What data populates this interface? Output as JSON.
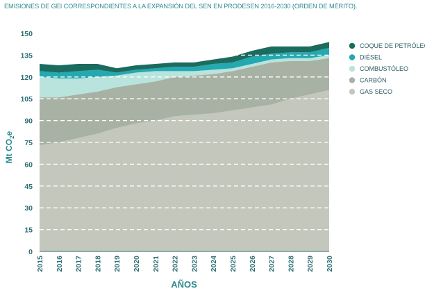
{
  "chart_data": {
    "type": "area",
    "stacked": true,
    "title": "EMISIONES DE GEI CORRESPONDIENTES A LA EXPANSIÓN DEL SEN EN PRODESEN 2016-2030 (ORDEN DE MÉRITO).",
    "xlabel": "AÑOS",
    "ylabel": "Mt CO2e",
    "ylabel_main": "Mt CO",
    "ylabel_sub": "2",
    "ylabel_suffix": "e",
    "x": [
      "2015",
      "2016",
      "2017",
      "2018",
      "2019",
      "2020",
      "2021",
      "2022",
      "2023",
      "2024",
      "2025",
      "2026",
      "2027",
      "2028",
      "2029",
      "2030"
    ],
    "ylim": [
      0,
      150
    ],
    "yticks": [
      "0",
      "15",
      "30",
      "45",
      "60",
      "75",
      "90",
      "105",
      "120",
      "135",
      "150"
    ],
    "grid": true,
    "legend_position": "right",
    "legend": [
      "COQUE DE PETRÓLEO",
      "DIÉSEL",
      "COMBUSTÓLEO",
      "CARBÓN",
      "GAS SECO"
    ],
    "series": [
      {
        "name": "GAS SECO",
        "color": "#c3c7bc",
        "values": [
          73,
          75,
          78,
          81,
          85,
          88,
          90,
          93,
          94,
          95,
          97,
          99,
          101,
          105,
          108,
          111
        ]
      },
      {
        "name": "CARBÓN",
        "color": "#a8b2a4",
        "values": [
          33,
          31,
          30,
          29,
          28,
          27,
          27,
          27,
          27,
          27,
          27,
          28,
          29,
          26,
          23,
          22
        ]
      },
      {
        "name": "COMBUSTÓLEO",
        "color": "#b9e3dd",
        "values": [
          14,
          13,
          11,
          10,
          8,
          8,
          7,
          4,
          3,
          3,
          2,
          2,
          2,
          2,
          2,
          2
        ]
      },
      {
        "name": "DIÉSEL",
        "color": "#25a8b0",
        "values": [
          4,
          4,
          5,
          5,
          2,
          2,
          2,
          3,
          3,
          4,
          4,
          5,
          4,
          4,
          4,
          5
        ]
      },
      {
        "name": "COQUE DE PETRÓLEO",
        "color": "#1b6b5f",
        "values": [
          5,
          5,
          5,
          4,
          3,
          3,
          3,
          3,
          3,
          3,
          4,
          4,
          5,
          4,
          4,
          4
        ]
      }
    ]
  }
}
